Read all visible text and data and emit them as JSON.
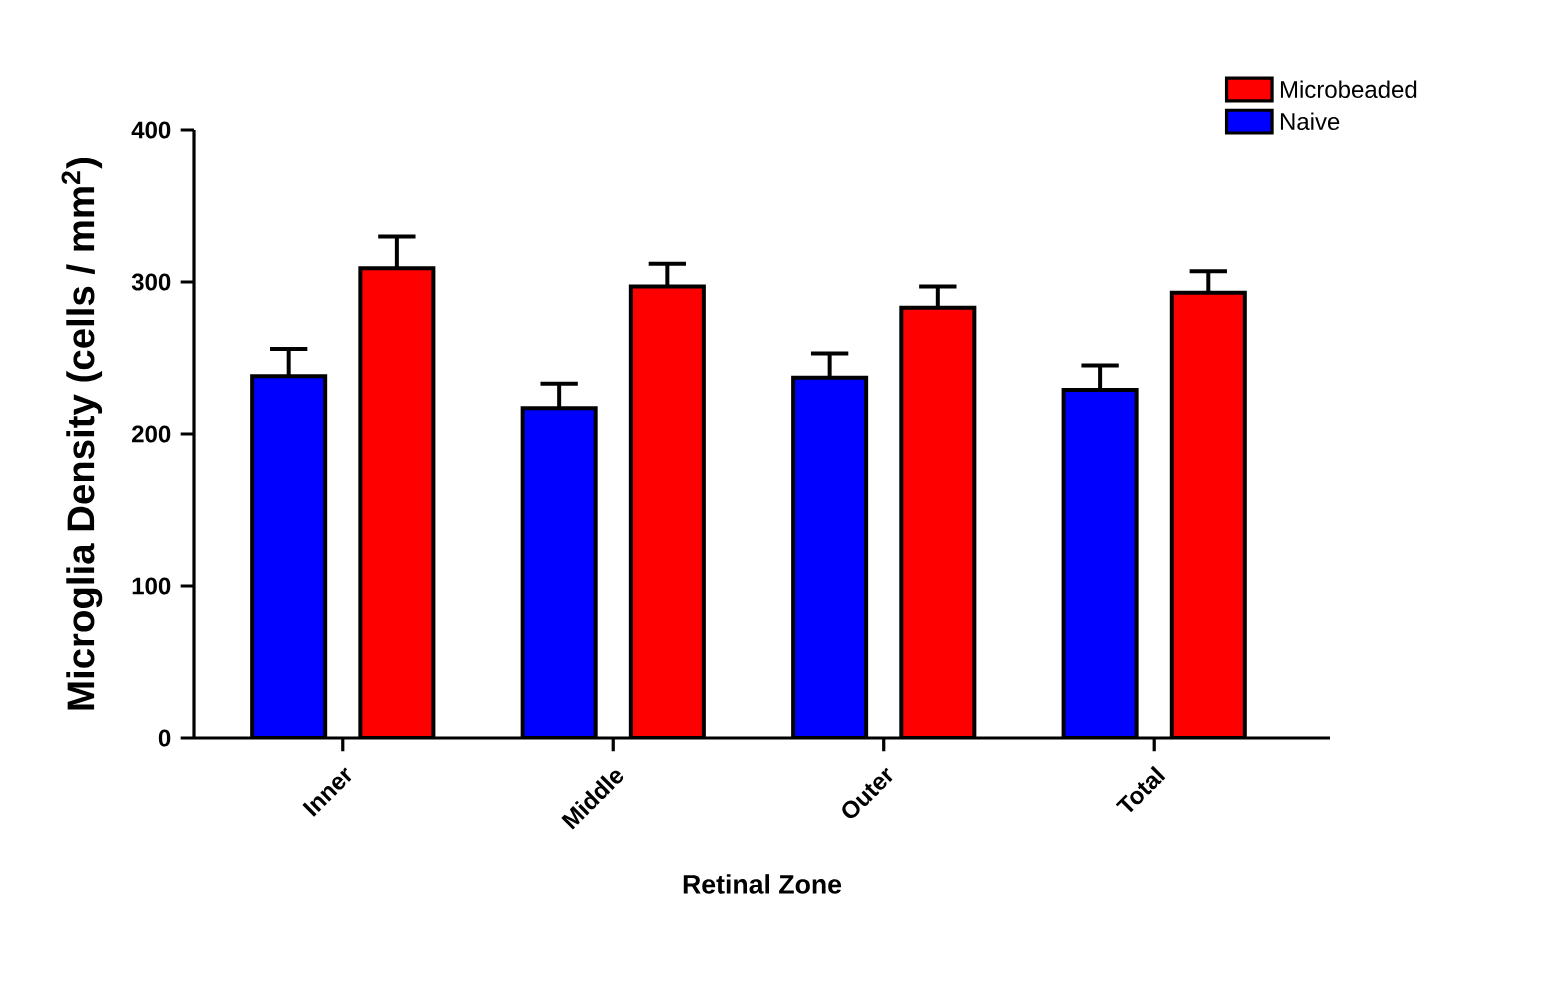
{
  "chart_data": {
    "type": "bar",
    "xlabel": "Retinal Zone",
    "ylabel": "Microglia Density (cells / mm$^{2}$)",
    "categories": [
      "Inner",
      "Middle",
      "Outer",
      "Total"
    ],
    "series": [
      {
        "name": "Naive",
        "color": "#0000ff",
        "values": [
          238,
          217,
          237,
          229
        ],
        "errors": [
          18,
          16,
          16,
          16
        ]
      },
      {
        "name": "Microbeaded",
        "color": "#ff0000",
        "values": [
          309,
          297,
          283,
          293
        ],
        "errors": [
          21,
          15,
          14,
          14
        ]
      }
    ],
    "ylim": [
      0,
      400
    ],
    "yticks": [
      0,
      100,
      200,
      300,
      400
    ],
    "grid": false,
    "legend": "top right"
  }
}
